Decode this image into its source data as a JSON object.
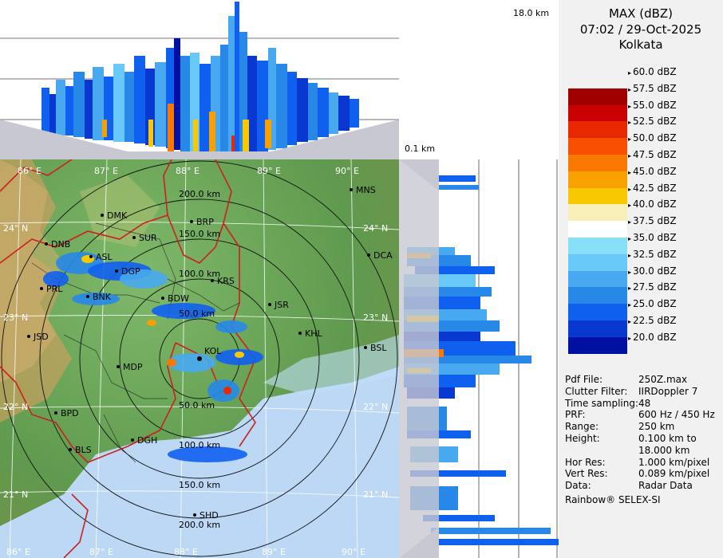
{
  "header": {
    "product": "MAX (dBZ)",
    "datetime": "07:02 / 29-Oct-2025",
    "station": "Kolkata"
  },
  "height_labels": {
    "top": "18.0 km",
    "bottom": "0.1 km"
  },
  "legend": {
    "entries": [
      {
        "label": "60.0 dBZ",
        "color": ""
      },
      {
        "label": "57.5 dBZ",
        "color": "#a00000"
      },
      {
        "label": "55.0 dBZ",
        "color": "#c80000"
      },
      {
        "label": "52.5 dBZ",
        "color": "#e82800"
      },
      {
        "label": "50.0 dBZ",
        "color": "#f85000"
      },
      {
        "label": "47.5 dBZ",
        "color": "#f87800"
      },
      {
        "label": "45.0 dBZ",
        "color": "#f8a000"
      },
      {
        "label": "42.5 dBZ",
        "color": "#f8c800"
      },
      {
        "label": "40.0 dBZ",
        "color": "#f8f0b8"
      },
      {
        "label": "37.5 dBZ",
        "color": "#ffffff"
      },
      {
        "label": "35.0 dBZ",
        "color": "#88e0f8"
      },
      {
        "label": "32.5 dBZ",
        "color": "#68c8f8"
      },
      {
        "label": "30.0 dBZ",
        "color": "#48a8f0"
      },
      {
        "label": "27.5 dBZ",
        "color": "#2888e8"
      },
      {
        "label": "25.0 dBZ",
        "color": "#1060f0"
      },
      {
        "label": "22.5 dBZ",
        "color": "#0838d0"
      },
      {
        "label": "20.0 dBZ",
        "color": "#0010a0"
      }
    ]
  },
  "info": [
    {
      "key": "Pdf File:",
      "value": "250Z.max"
    },
    {
      "key": "Clutter Filter:",
      "value": "IIRDoppler 7"
    },
    {
      "key": "Time sampling:",
      "value": "48"
    },
    {
      "key": "PRF:",
      "value": "600 Hz / 450 Hz"
    },
    {
      "key": "Range:",
      "value": "250 km"
    },
    {
      "key": "Height:",
      "value": "0.100 km to"
    },
    {
      "key": "",
      "value": "18.000 km"
    },
    {
      "key": "Hor Res:",
      "value": "1.000 km/pixel"
    },
    {
      "key": "Vert Res:",
      "value": "0.089 km/pixel"
    },
    {
      "key": "Data:",
      "value": "Radar Data"
    }
  ],
  "footer": "Rainbow® SELEX-SI",
  "map": {
    "lon_labels": [
      "86° E",
      "87° E",
      "88° E",
      "89° E",
      "90° E"
    ],
    "lat_labels": [
      "24° N",
      "23° N",
      "22° N",
      "21° N"
    ],
    "range_labels": [
      "200.0 km",
      "150.0 km",
      "100.0 km",
      "50.0 km",
      "50.0 km",
      "100.0 km",
      "150.0 km",
      "200.0 km"
    ],
    "cities": [
      {
        "name": "MNS"
      },
      {
        "name": "DMK"
      },
      {
        "name": "BRP"
      },
      {
        "name": "SUR"
      },
      {
        "name": "DNB"
      },
      {
        "name": "ASL"
      },
      {
        "name": "DGP"
      },
      {
        "name": "DCA"
      },
      {
        "name": "KRS"
      },
      {
        "name": "PRL"
      },
      {
        "name": "BNK"
      },
      {
        "name": "BDW"
      },
      {
        "name": "JSR"
      },
      {
        "name": "KHL"
      },
      {
        "name": "BSL"
      },
      {
        "name": "JSD"
      },
      {
        "name": "MDP"
      },
      {
        "name": "KOL"
      },
      {
        "name": "BPD"
      },
      {
        "name": "DGH"
      },
      {
        "name": "BLS"
      },
      {
        "name": "SHD"
      }
    ]
  }
}
